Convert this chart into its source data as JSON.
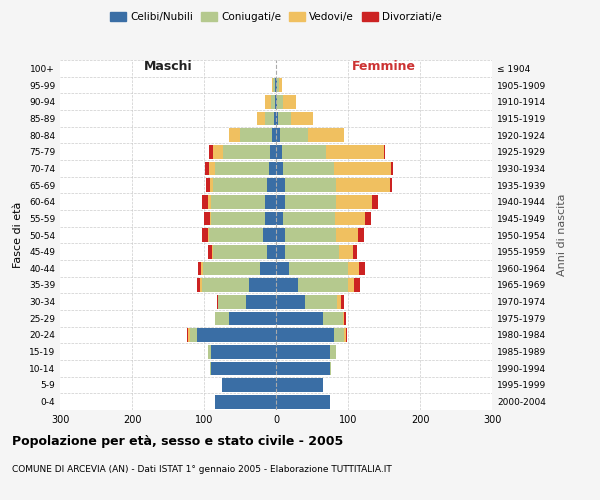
{
  "age_groups": [
    "0-4",
    "5-9",
    "10-14",
    "15-19",
    "20-24",
    "25-29",
    "30-34",
    "35-39",
    "40-44",
    "45-49",
    "50-54",
    "55-59",
    "60-64",
    "65-69",
    "70-74",
    "75-79",
    "80-84",
    "85-89",
    "90-94",
    "95-99",
    "100+"
  ],
  "birth_years": [
    "2000-2004",
    "1995-1999",
    "1990-1994",
    "1985-1989",
    "1980-1984",
    "1975-1979",
    "1970-1974",
    "1965-1969",
    "1960-1964",
    "1955-1959",
    "1950-1954",
    "1945-1949",
    "1940-1944",
    "1935-1939",
    "1930-1934",
    "1925-1929",
    "1920-1924",
    "1915-1919",
    "1910-1914",
    "1905-1909",
    "≤ 1904"
  ],
  "maschi_celibi": [
    85,
    75,
    90,
    90,
    110,
    65,
    42,
    38,
    22,
    12,
    18,
    15,
    15,
    12,
    10,
    8,
    5,
    3,
    2,
    2,
    0
  ],
  "maschi_coniugati": [
    0,
    0,
    2,
    5,
    10,
    20,
    38,
    65,
    80,
    75,
    75,
    75,
    75,
    75,
    75,
    65,
    45,
    12,
    5,
    2,
    0
  ],
  "maschi_vedovi": [
    0,
    0,
    0,
    0,
    2,
    0,
    0,
    2,
    2,
    2,
    2,
    2,
    5,
    5,
    8,
    15,
    15,
    12,
    8,
    2,
    0
  ],
  "maschi_divorziati": [
    0,
    0,
    0,
    0,
    2,
    0,
    2,
    5,
    5,
    5,
    8,
    8,
    8,
    5,
    5,
    5,
    0,
    0,
    0,
    0,
    0
  ],
  "femmine_nubili": [
    75,
    65,
    75,
    75,
    80,
    65,
    40,
    30,
    18,
    12,
    12,
    10,
    12,
    12,
    10,
    8,
    5,
    3,
    2,
    2,
    0
  ],
  "femmine_coniugate": [
    0,
    0,
    2,
    8,
    15,
    28,
    45,
    70,
    82,
    75,
    72,
    72,
    72,
    72,
    70,
    62,
    40,
    18,
    8,
    2,
    0
  ],
  "femmine_vedove": [
    0,
    0,
    0,
    0,
    2,
    2,
    5,
    8,
    15,
    20,
    30,
    42,
    50,
    75,
    80,
    80,
    50,
    30,
    18,
    5,
    0
  ],
  "femmine_divorziate": [
    0,
    0,
    0,
    0,
    2,
    2,
    5,
    8,
    8,
    5,
    8,
    8,
    8,
    2,
    2,
    2,
    0,
    0,
    0,
    0,
    0
  ],
  "color_celibi": "#3a6ea5",
  "color_coniugati": "#b5c98e",
  "color_vedovi": "#f0c060",
  "color_divorziati": "#cc2222",
  "xlim": 300,
  "title": "Popolazione per età, sesso e stato civile - 2005",
  "subtitle": "COMUNE DI ARCEVIA (AN) - Dati ISTAT 1° gennaio 2005 - Elaborazione TUTTITALIA.IT",
  "ylabel": "Fasce di età",
  "right_label": "Anni di nascita",
  "bg_color": "#f5f5f5",
  "bar_bg": "#ffffff"
}
